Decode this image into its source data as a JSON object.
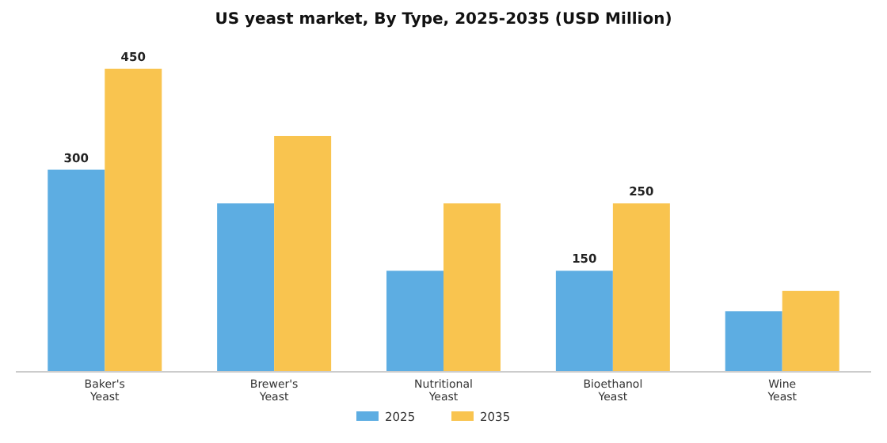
{
  "chart_data": {
    "type": "bar",
    "title": "US yeast market, By Type, 2025-2035 (USD Million)",
    "categories": [
      "Baker's Yeast",
      "Brewer's Yeast",
      "Nutritional Yeast",
      "Bioethanol Yeast",
      "Wine Yeast"
    ],
    "series": [
      {
        "name": "2025",
        "color": "#5dade2",
        "values": [
          300,
          250,
          150,
          150,
          90
        ],
        "value_labels": [
          "300",
          null,
          null,
          "150",
          null
        ]
      },
      {
        "name": "2035",
        "color": "#f9c44f",
        "values": [
          450,
          350,
          250,
          250,
          120
        ],
        "value_labels": [
          "450",
          null,
          null,
          "250",
          null
        ]
      }
    ],
    "legend": "bottom",
    "grid": false
  }
}
